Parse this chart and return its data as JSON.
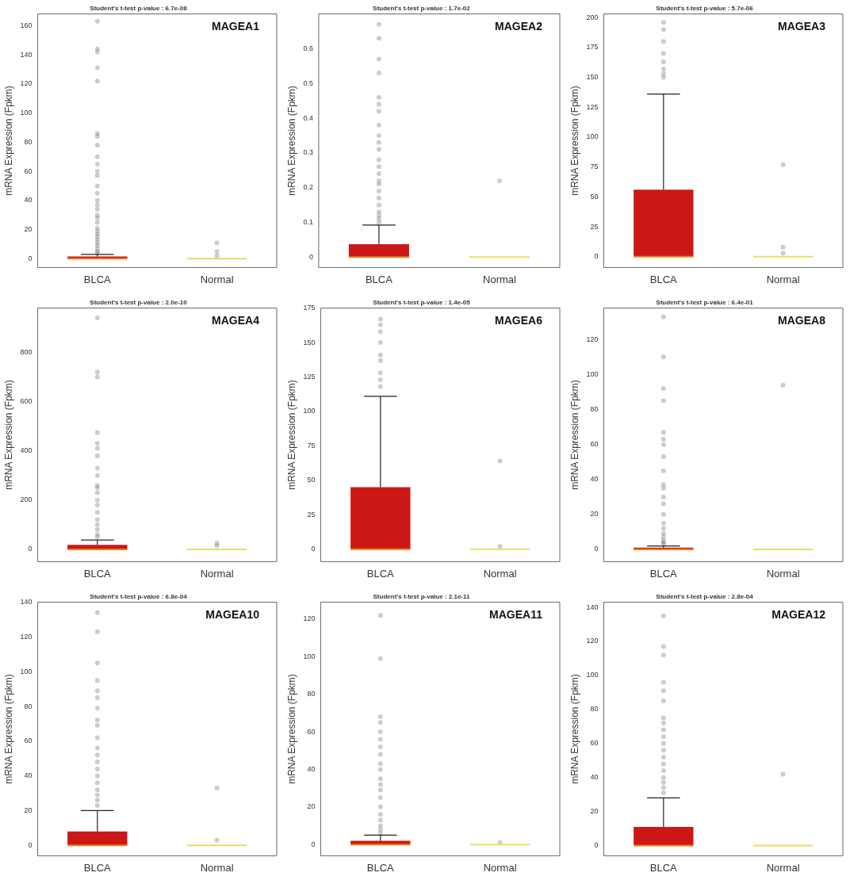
{
  "chart_data": [
    {
      "type": "box",
      "title": "Student's t-test p-value : 6.7e-08",
      "annotations": [
        "MAGEA1"
      ],
      "ylabel": "mRNA Expression (Fpkm)",
      "categories": [
        "BLCA",
        "Normal"
      ],
      "colors": [
        "#cc1717",
        "#e6e05c"
      ],
      "ylim": [
        -6,
        168
      ],
      "yticks": [
        0,
        20,
        40,
        60,
        80,
        100,
        120,
        140,
        160
      ],
      "boxes": [
        {
          "low": 0,
          "q1": 0,
          "median": 0,
          "q3": 1.5,
          "high": 3,
          "outliers": [
            163,
            144,
            142,
            131,
            122,
            86,
            84,
            78,
            70,
            65,
            60,
            57,
            50,
            45,
            40,
            37,
            34,
            30,
            28,
            25,
            21,
            19,
            17,
            15,
            13,
            11,
            9,
            7,
            5,
            4
          ]
        },
        {
          "low": 0,
          "q1": 0,
          "median": 0,
          "q3": 0,
          "high": 0,
          "outliers": [
            11,
            5,
            2
          ]
        }
      ]
    },
    {
      "type": "box",
      "title": "Student's t-test p-value : 1.7e-02",
      "annotations": [
        "MAGEA2"
      ],
      "ylabel": "mRNA Expression (Fpkm)",
      "categories": [
        "BLCA",
        "Normal"
      ],
      "colors": [
        "#cc1717",
        "#e6e05c"
      ],
      "ylim": [
        -0.03,
        0.7
      ],
      "yticks": [
        0,
        0.1,
        0.2,
        0.3,
        0.4,
        0.5,
        0.6
      ],
      "boxes": [
        {
          "low": 0,
          "q1": 0,
          "median": 0,
          "q3": 0.037,
          "high": 0.092,
          "outliers": [
            0.67,
            0.63,
            0.57,
            0.53,
            0.46,
            0.44,
            0.42,
            0.38,
            0.35,
            0.33,
            0.31,
            0.28,
            0.26,
            0.24,
            0.22,
            0.21,
            0.19,
            0.17,
            0.15,
            0.13,
            0.12,
            0.11,
            0.1
          ]
        },
        {
          "low": 0,
          "q1": 0,
          "median": 0,
          "q3": 0,
          "high": 0,
          "outliers": [
            0.22
          ]
        }
      ]
    },
    {
      "type": "box",
      "title": "Student's t-test p-value : 5.7e-06",
      "annotations": [
        "MAGEA3"
      ],
      "ylabel": "mRNA Expression (Fpkm)",
      "categories": [
        "BLCA",
        "Normal"
      ],
      "colors": [
        "#cc1717",
        "#e6e05c"
      ],
      "ylim": [
        -9,
        203
      ],
      "yticks": [
        0,
        25,
        50,
        75,
        100,
        125,
        150,
        175,
        200
      ],
      "boxes": [
        {
          "low": 0,
          "q1": 0,
          "median": 0,
          "q3": 56,
          "high": 136,
          "outliers": [
            196,
            190,
            180,
            170,
            163,
            157,
            153,
            150
          ]
        },
        {
          "low": 0,
          "q1": 0,
          "median": 0,
          "q3": 0,
          "high": 0,
          "outliers": [
            77,
            8,
            3
          ]
        }
      ]
    },
    {
      "type": "box",
      "title": "Student's t-test p-value : 2.0e-10",
      "annotations": [
        "MAGEA4"
      ],
      "ylabel": "mRNA Expression (Fpkm)",
      "categories": [
        "BLCA",
        "Normal"
      ],
      "colors": [
        "#cc1717",
        "#e6e05c"
      ],
      "ylim": [
        -50,
        980
      ],
      "yticks": [
        0,
        200,
        400,
        600,
        800
      ],
      "boxes": [
        {
          "low": 0,
          "q1": 0,
          "median": 0,
          "q3": 18,
          "high": 38,
          "outliers": [
            940,
            720,
            700,
            475,
            430,
            410,
            380,
            330,
            300,
            260,
            250,
            230,
            200,
            180,
            150,
            120,
            100,
            80,
            60,
            50
          ]
        },
        {
          "low": 0,
          "q1": 0,
          "median": 0,
          "q3": 0,
          "high": 0,
          "outliers": [
            25,
            15
          ]
        }
      ]
    },
    {
      "type": "box",
      "title": "Student's t-test p-value : 1.4e-05",
      "annotations": [
        "MAGEA6"
      ],
      "ylabel": "mRNA Expression (Fpkm)",
      "categories": [
        "BLCA",
        "Normal"
      ],
      "colors": [
        "#cc1717",
        "#e6e05c"
      ],
      "ylim": [
        -9,
        175
      ],
      "yticks": [
        0,
        25,
        50,
        75,
        100,
        125,
        150,
        175
      ],
      "boxes": [
        {
          "low": 0,
          "q1": 0,
          "median": 0,
          "q3": 45,
          "high": 111,
          "outliers": [
            167,
            163,
            158,
            150,
            141,
            137,
            128,
            123,
            118
          ]
        },
        {
          "low": 0,
          "q1": 0,
          "median": 0,
          "q3": 0,
          "high": 0,
          "outliers": [
            64,
            2
          ]
        }
      ]
    },
    {
      "type": "box",
      "title": "Student's t-test p-value : 6.4e-01",
      "annotations": [
        "MAGEA8"
      ],
      "ylabel": "mRNA Expression (Fpkm)",
      "categories": [
        "BLCA",
        "Normal"
      ],
      "colors": [
        "#cc1717",
        "#e6e05c"
      ],
      "ylim": [
        -7,
        138
      ],
      "yticks": [
        0,
        20,
        40,
        60,
        80,
        100,
        120
      ],
      "boxes": [
        {
          "low": 0,
          "q1": 0,
          "median": 0,
          "q3": 1,
          "high": 2,
          "outliers": [
            133,
            110,
            92,
            85,
            67,
            63,
            60,
            53,
            45,
            37,
            35,
            30,
            26,
            20,
            15,
            12,
            9,
            7,
            5,
            4,
            3
          ]
        },
        {
          "low": 0,
          "q1": 0,
          "median": 0,
          "q3": 0,
          "high": 0,
          "outliers": [
            94
          ]
        }
      ]
    },
    {
      "type": "box",
      "title": "Student's t-test p-value : 6.8e-04",
      "annotations": [
        "MAGEA10"
      ],
      "ylabel": "mRNA Expression (Fpkm)",
      "categories": [
        "BLCA",
        "Normal"
      ],
      "colors": [
        "#cc1717",
        "#e6e05c"
      ],
      "ylim": [
        -6,
        140
      ],
      "yticks": [
        0,
        20,
        40,
        60,
        80,
        100,
        120,
        140
      ],
      "boxes": [
        {
          "low": 0,
          "q1": 0,
          "median": 0,
          "q3": 8,
          "high": 20,
          "outliers": [
            134,
            123,
            105,
            95,
            89,
            85,
            79,
            72,
            69,
            62,
            56,
            52,
            48,
            44,
            40,
            36,
            32,
            29,
            26,
            23
          ]
        },
        {
          "low": 0,
          "q1": 0,
          "median": 0,
          "q3": 0,
          "high": 0,
          "outliers": [
            33,
            3
          ]
        }
      ]
    },
    {
      "type": "box",
      "title": "Student's t-test p-value : 2.1e-11",
      "annotations": [
        "MAGEA11"
      ],
      "ylabel": "mRNA Expression (Fpkm)",
      "categories": [
        "BLCA",
        "Normal"
      ],
      "colors": [
        "#cc1717",
        "#e6e05c"
      ],
      "ylim": [
        -6,
        129
      ],
      "yticks": [
        0,
        20,
        40,
        60,
        80,
        100,
        120
      ],
      "boxes": [
        {
          "low": 0,
          "q1": 0,
          "median": 0,
          "q3": 2,
          "high": 5,
          "outliers": [
            122,
            99,
            68,
            65,
            60,
            56,
            52,
            48,
            43,
            40,
            35,
            32,
            29,
            25,
            20,
            16,
            13,
            10,
            8,
            6
          ]
        },
        {
          "low": 0,
          "q1": 0,
          "median": 0,
          "q3": 0,
          "high": 0,
          "outliers": [
            1
          ]
        }
      ]
    },
    {
      "type": "box",
      "title": "Student's t-test p-value : 2.8e-04",
      "annotations": [
        "MAGEA12"
      ],
      "ylabel": "mRNA Expression (Fpkm)",
      "categories": [
        "BLCA",
        "Normal"
      ],
      "colors": [
        "#cc1717",
        "#e6e05c"
      ],
      "ylim": [
        -6,
        143
      ],
      "yticks": [
        0,
        20,
        40,
        60,
        80,
        100,
        120,
        140
      ],
      "boxes": [
        {
          "low": 0,
          "q1": 0,
          "median": 0,
          "q3": 11,
          "high": 28,
          "outliers": [
            135,
            117,
            112,
            96,
            91,
            85,
            75,
            72,
            68,
            64,
            60,
            56,
            52,
            48,
            44,
            40,
            37,
            34,
            31
          ]
        },
        {
          "low": 0,
          "q1": 0,
          "median": 0,
          "q3": 0,
          "high": 0,
          "outliers": [
            42
          ]
        }
      ]
    }
  ]
}
